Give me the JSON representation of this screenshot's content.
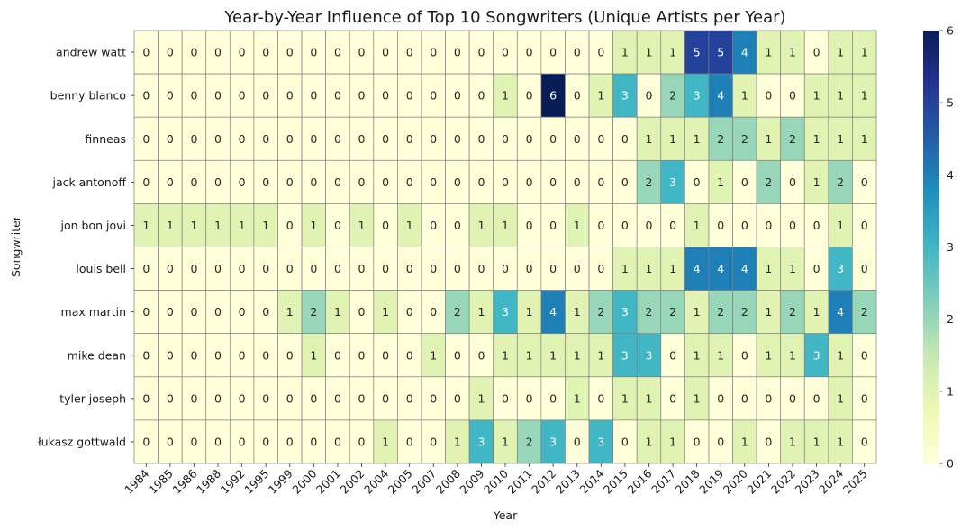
{
  "chart_data": {
    "type": "heatmap",
    "title": "Year-by-Year Influence of Top 10 Songwriters (Unique Artists per Year)",
    "xlabel": "Year",
    "ylabel": "Songwriter",
    "colormap": "YlGnBu",
    "vmin": 0,
    "vmax": 6,
    "colorbar_ticks": [
      "0",
      "1",
      "2",
      "3",
      "4",
      "5",
      "6"
    ],
    "x": [
      "1984",
      "1985",
      "1986",
      "1988",
      "1992",
      "1995",
      "1999",
      "2000",
      "2001",
      "2002",
      "2004",
      "2005",
      "2007",
      "2008",
      "2009",
      "2010",
      "2011",
      "2012",
      "2013",
      "2014",
      "2015",
      "2016",
      "2017",
      "2018",
      "2019",
      "2020",
      "2021",
      "2022",
      "2023",
      "2024",
      "2025"
    ],
    "y": [
      "andrew watt",
      "benny blanco",
      "finneas",
      "jack antonoff",
      "jon bon jovi",
      "louis bell",
      "max martin",
      "mike dean",
      "tyler joseph",
      "łukasz gottwald"
    ],
    "values": [
      [
        0,
        0,
        0,
        0,
        0,
        0,
        0,
        0,
        0,
        0,
        0,
        0,
        0,
        0,
        0,
        0,
        0,
        0,
        0,
        0,
        1,
        1,
        1,
        5,
        5,
        4,
        1,
        1,
        0,
        1,
        1
      ],
      [
        0,
        0,
        0,
        0,
        0,
        0,
        0,
        0,
        0,
        0,
        0,
        0,
        0,
        0,
        0,
        1,
        0,
        6,
        0,
        1,
        3,
        0,
        2,
        3,
        4,
        1,
        0,
        0,
        1,
        1,
        1
      ],
      [
        0,
        0,
        0,
        0,
        0,
        0,
        0,
        0,
        0,
        0,
        0,
        0,
        0,
        0,
        0,
        0,
        0,
        0,
        0,
        0,
        0,
        1,
        1,
        1,
        2,
        2,
        1,
        2,
        1,
        1,
        1
      ],
      [
        0,
        0,
        0,
        0,
        0,
        0,
        0,
        0,
        0,
        0,
        0,
        0,
        0,
        0,
        0,
        0,
        0,
        0,
        0,
        0,
        0,
        2,
        3,
        0,
        1,
        0,
        2,
        0,
        1,
        2,
        0
      ],
      [
        1,
        1,
        1,
        1,
        1,
        1,
        0,
        1,
        0,
        1,
        0,
        1,
        0,
        0,
        1,
        1,
        0,
        0,
        1,
        0,
        0,
        0,
        0,
        1,
        0,
        0,
        0,
        0,
        0,
        1,
        0
      ],
      [
        0,
        0,
        0,
        0,
        0,
        0,
        0,
        0,
        0,
        0,
        0,
        0,
        0,
        0,
        0,
        0,
        0,
        0,
        0,
        0,
        1,
        1,
        1,
        4,
        4,
        4,
        1,
        1,
        0,
        3,
        0
      ],
      [
        0,
        0,
        0,
        0,
        0,
        0,
        1,
        2,
        1,
        0,
        1,
        0,
        0,
        2,
        1,
        3,
        1,
        4,
        1,
        2,
        3,
        2,
        2,
        1,
        2,
        2,
        1,
        2,
        1,
        4,
        2
      ],
      [
        0,
        0,
        0,
        0,
        0,
        0,
        0,
        1,
        0,
        0,
        0,
        0,
        1,
        0,
        0,
        1,
        1,
        1,
        1,
        1,
        3,
        3,
        0,
        1,
        1,
        0,
        1,
        1,
        3,
        1,
        0
      ],
      [
        0,
        0,
        0,
        0,
        0,
        0,
        0,
        0,
        0,
        0,
        0,
        0,
        0,
        0,
        1,
        0,
        0,
        0,
        1,
        0,
        1,
        1,
        0,
        1,
        0,
        0,
        0,
        0,
        0,
        1,
        0
      ],
      [
        0,
        0,
        0,
        0,
        0,
        0,
        0,
        0,
        0,
        0,
        1,
        0,
        0,
        1,
        3,
        1,
        2,
        3,
        0,
        3,
        0,
        1,
        1,
        0,
        0,
        1,
        0,
        1,
        1,
        1,
        0
      ]
    ]
  }
}
